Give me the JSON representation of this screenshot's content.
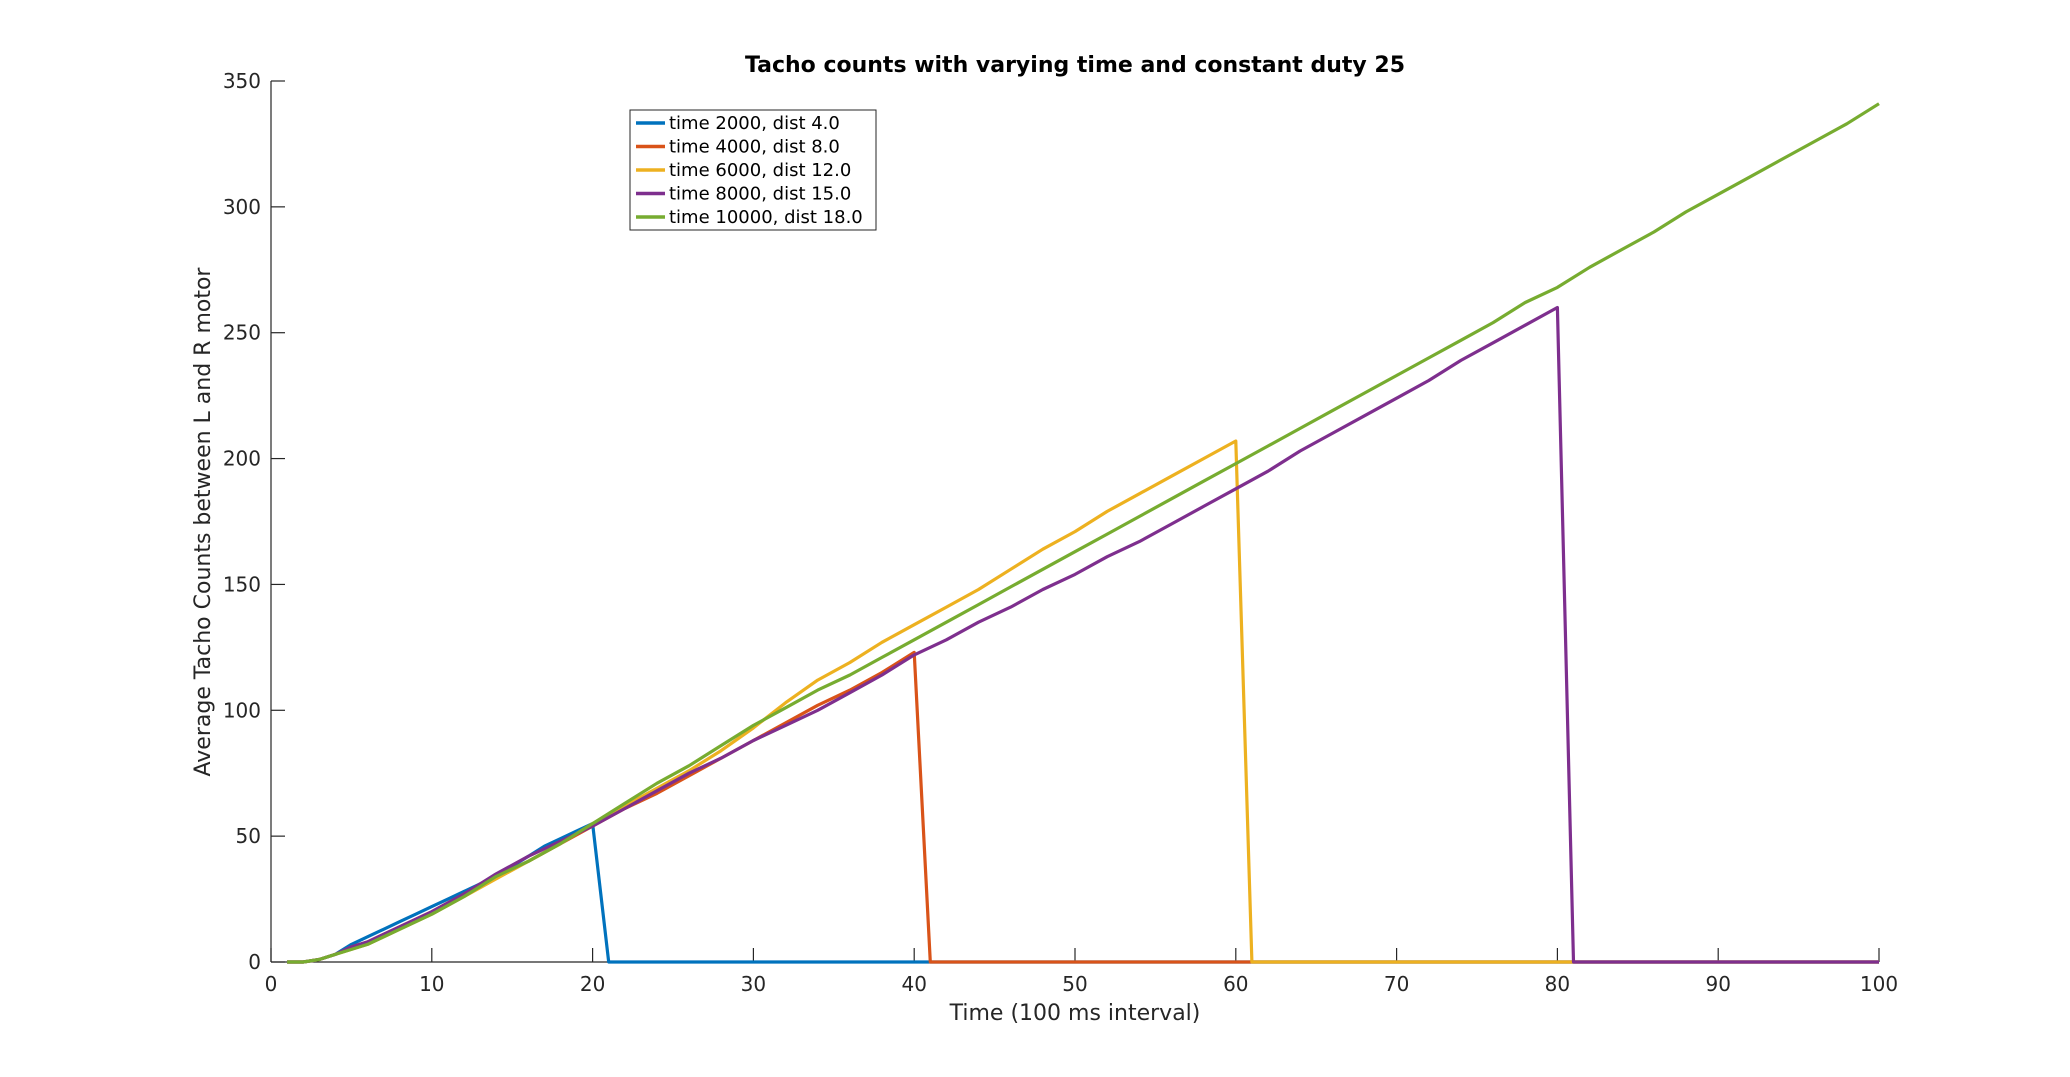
{
  "chart_data": {
    "type": "line",
    "title": "Tacho counts with varying time and constant duty 25",
    "xlabel": "Time (100 ms interval)",
    "ylabel": "Average Tacho Counts between L and R motor",
    "xlim": [
      0,
      100
    ],
    "ylim": [
      0,
      350
    ],
    "xticks": [
      0,
      10,
      20,
      30,
      40,
      50,
      60,
      70,
      80,
      90,
      100
    ],
    "yticks": [
      0,
      50,
      100,
      150,
      200,
      250,
      300,
      350
    ],
    "grid": false,
    "legend_position": "top-left inside",
    "series": [
      {
        "name": "time 2000, dist 4.0",
        "color": "#0072BD",
        "x": [
          1,
          2,
          3,
          4,
          5,
          6,
          7,
          8,
          9,
          10,
          11,
          12,
          13,
          14,
          15,
          16,
          17,
          18,
          19,
          20,
          21,
          100
        ],
        "y": [
          0,
          0,
          1,
          3,
          7,
          10,
          13,
          16,
          19,
          22,
          25,
          28,
          31,
          34,
          38,
          42,
          46,
          49,
          52,
          55,
          0,
          0
        ]
      },
      {
        "name": "time 4000, dist 8.0",
        "color": "#D95319",
        "x": [
          1,
          2,
          3,
          4,
          5,
          6,
          8,
          10,
          12,
          14,
          16,
          18,
          20,
          22,
          24,
          26,
          28,
          30,
          32,
          34,
          36,
          38,
          40,
          41,
          100
        ],
        "y": [
          0,
          0,
          1,
          3,
          6,
          8,
          14,
          20,
          27,
          34,
          40,
          47,
          54,
          61,
          67,
          74,
          81,
          88,
          95,
          102,
          108,
          115,
          123,
          0,
          0
        ]
      },
      {
        "name": "time 6000, dist 12.0",
        "color": "#EDB120",
        "x": [
          1,
          2,
          3,
          4,
          5,
          6,
          8,
          10,
          12,
          14,
          16,
          18,
          20,
          22,
          24,
          26,
          28,
          30,
          32,
          34,
          36,
          38,
          40,
          42,
          44,
          46,
          48,
          50,
          52,
          54,
          56,
          58,
          60,
          61,
          100
        ],
        "y": [
          0,
          0,
          1,
          3,
          5,
          7,
          13,
          19,
          26,
          33,
          40,
          47,
          55,
          62,
          69,
          76,
          84,
          93,
          103,
          112,
          119,
          127,
          134,
          141,
          148,
          156,
          164,
          171,
          179,
          186,
          193,
          200,
          207,
          0,
          0
        ]
      },
      {
        "name": "time 8000, dist 15.0",
        "color": "#7E2F8E",
        "x": [
          1,
          2,
          3,
          4,
          5,
          6,
          8,
          10,
          12,
          14,
          16,
          18,
          20,
          22,
          24,
          26,
          28,
          30,
          32,
          34,
          36,
          38,
          40,
          42,
          44,
          46,
          48,
          50,
          52,
          54,
          56,
          58,
          60,
          62,
          64,
          66,
          68,
          70,
          72,
          74,
          76,
          78,
          80,
          81,
          100
        ],
        "y": [
          0,
          0,
          1,
          3,
          6,
          8,
          14,
          20,
          27,
          35,
          42,
          48,
          54,
          61,
          68,
          75,
          81,
          88,
          94,
          100,
          107,
          114,
          122,
          128,
          135,
          141,
          148,
          154,
          161,
          167,
          174,
          181,
          188,
          195,
          203,
          210,
          217,
          224,
          231,
          239,
          246,
          253,
          260,
          0,
          0
        ]
      },
      {
        "name": "time 10000, dist 18.0",
        "color": "#77AC30",
        "x": [
          1,
          2,
          3,
          4,
          5,
          6,
          8,
          10,
          12,
          14,
          16,
          18,
          20,
          22,
          24,
          26,
          28,
          30,
          32,
          34,
          36,
          38,
          40,
          42,
          44,
          46,
          48,
          50,
          52,
          54,
          56,
          58,
          60,
          62,
          64,
          66,
          68,
          70,
          72,
          74,
          76,
          78,
          80,
          82,
          84,
          86,
          88,
          90,
          92,
          94,
          96,
          98,
          100
        ],
        "y": [
          0,
          0,
          1,
          3,
          5,
          7,
          13,
          19,
          26,
          34,
          40,
          47,
          55,
          63,
          71,
          78,
          86,
          94,
          101,
          108,
          114,
          121,
          128,
          135,
          142,
          149,
          156,
          163,
          170,
          177,
          184,
          191,
          198,
          205,
          212,
          219,
          226,
          233,
          240,
          247,
          254,
          262,
          268,
          276,
          283,
          290,
          298,
          305,
          312,
          319,
          326,
          333,
          341
        ]
      }
    ]
  }
}
